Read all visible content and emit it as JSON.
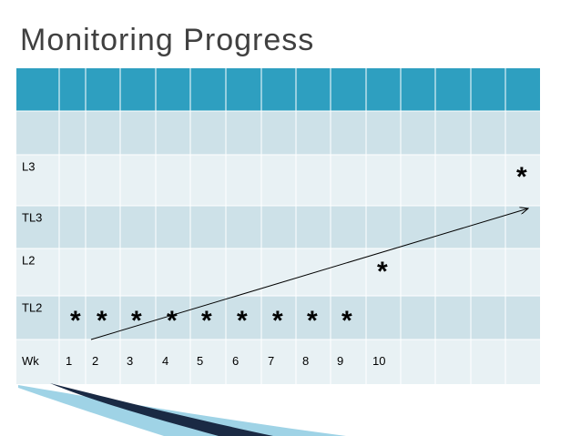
{
  "title": "Monitoring Progress",
  "table": {
    "rows": [
      {
        "label": "L3",
        "cells": [
          null,
          null,
          null,
          null,
          null,
          null,
          null,
          null,
          null,
          null,
          null,
          null,
          null,
          "*"
        ]
      },
      {
        "label": "TL3",
        "cells": [
          null,
          null,
          null,
          null,
          null,
          null,
          null,
          null,
          null,
          null,
          null,
          null,
          null,
          null
        ]
      },
      {
        "label": "L2",
        "cells": [
          null,
          null,
          null,
          null,
          null,
          null,
          null,
          null,
          null,
          "*",
          null,
          null,
          null,
          null
        ]
      },
      {
        "label": "TL2",
        "cells": [
          "*",
          "*",
          "*",
          "*",
          "*",
          "*",
          "*",
          "*",
          "*",
          null,
          null,
          null,
          null,
          null
        ]
      },
      {
        "label": "Wk",
        "cells": [
          "1",
          "2",
          "3",
          "4",
          "5",
          "6",
          "7",
          "8",
          "9",
          "10",
          null,
          null,
          null,
          null
        ]
      }
    ]
  }
}
